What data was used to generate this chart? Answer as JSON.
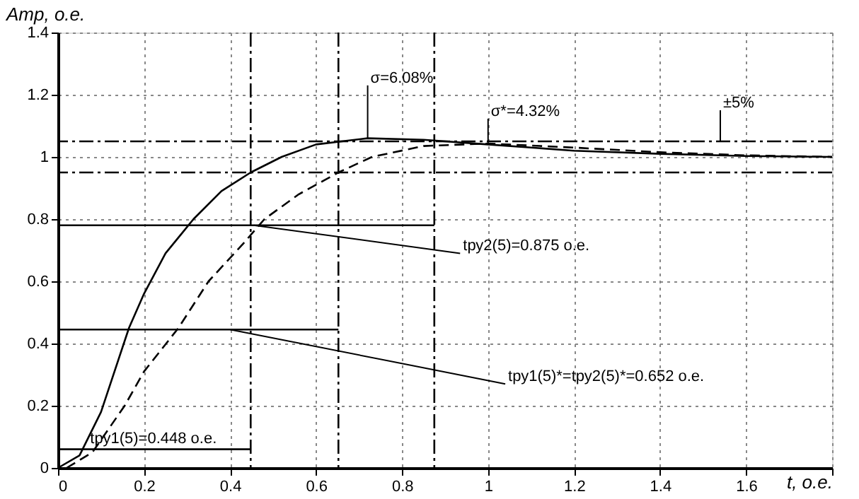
{
  "chart_data": {
    "type": "line",
    "xlabel": "t, о.е.",
    "ylabel": "Amp, о.е.",
    "series": [
      {
        "color": "#000000",
        "line_style": "solid",
        "x": [
          0,
          0.05,
          0.1,
          0.165,
          0.2,
          0.25,
          0.315,
          0.38,
          0.448,
          0.52,
          0.6,
          0.72,
          0.85,
          1.0,
          1.2,
          1.4,
          1.6,
          1.8
        ],
        "values": [
          0,
          0.04,
          0.18,
          0.45,
          0.56,
          0.69,
          0.8,
          0.89,
          0.95,
          1.0,
          1.04,
          1.06,
          1.055,
          1.04,
          1.02,
          1.01,
          1.003,
          1.0
        ]
      },
      {
        "color": "#000000",
        "line_style": "solid",
        "x": [
          0,
          0.875
        ],
        "values": [
          0.78,
          0.78
        ]
      },
      {
        "color": "#000000",
        "line_style": "solid",
        "x": [
          0,
          0.652
        ],
        "values": [
          0.445,
          0.445
        ]
      },
      {
        "color": "#000000",
        "line_style": "solid",
        "x": [
          0,
          0.448
        ],
        "values": [
          0.06,
          0.06
        ]
      },
      {
        "color": "#000000",
        "line_style": "dashed",
        "x": [
          0.02,
          0.08,
          0.155,
          0.2,
          0.28,
          0.35,
          0.43,
          0.48,
          0.56,
          0.652,
          0.73,
          0.85,
          1.0,
          1.2,
          1.4,
          1.6,
          1.8
        ],
        "values": [
          0,
          0.05,
          0.2,
          0.31,
          0.45,
          0.6,
          0.72,
          0.8,
          0.88,
          0.95,
          1.0,
          1.035,
          1.043,
          1.03,
          1.015,
          1.005,
          1.0
        ]
      }
    ],
    "xlim": [
      0,
      1.8
    ],
    "ylim": [
      0,
      1.4
    ],
    "xticks": [
      0,
      0.2,
      0.4,
      0.6,
      0.8,
      1,
      1.2,
      1.4,
      1.6,
      {
        "value": 1.8,
        "label": null
      }
    ],
    "yticks": [
      0,
      0.2,
      0.4,
      0.6,
      0.8,
      1,
      1.2,
      1.4
    ],
    "grid": true,
    "marker": "none",
    "ref_lines": [
      {
        "axis": "y",
        "value": 1.05,
        "line_style": "dashed",
        "color": "#000000"
      },
      {
        "axis": "y",
        "value": 0.95,
        "line_style": "dashed",
        "color": "#000000"
      },
      {
        "axis": "x",
        "value": 0.448,
        "line_style": "dashed",
        "color": "#000000"
      },
      {
        "axis": "x",
        "value": 0.652,
        "line_style": "dashed",
        "color": "#000000"
      },
      {
        "axis": "x",
        "value": 0.875,
        "line_style": "dashed",
        "color": "#000000"
      }
    ],
    "annotations": [
      {
        "text": "σ=6.08%",
        "x": 0.72,
        "y": 1.06
      },
      {
        "text": "σ*=4.32%",
        "x": 1.0,
        "y": 1.043
      },
      {
        "text": "±5%",
        "x": 1.54,
        "y": 1.05
      },
      {
        "text": "tру2(5)=0.875 о.е.",
        "x": 0.875,
        "y": 0.78
      },
      {
        "text": "tру1(5)*=tру2(5)*=0.652 о.е.",
        "x": 0.4,
        "y": 0.445
      },
      {
        "text": "tру1(5)=0.448 о.е.",
        "x": 0.448,
        "y": 0.06
      }
    ]
  }
}
